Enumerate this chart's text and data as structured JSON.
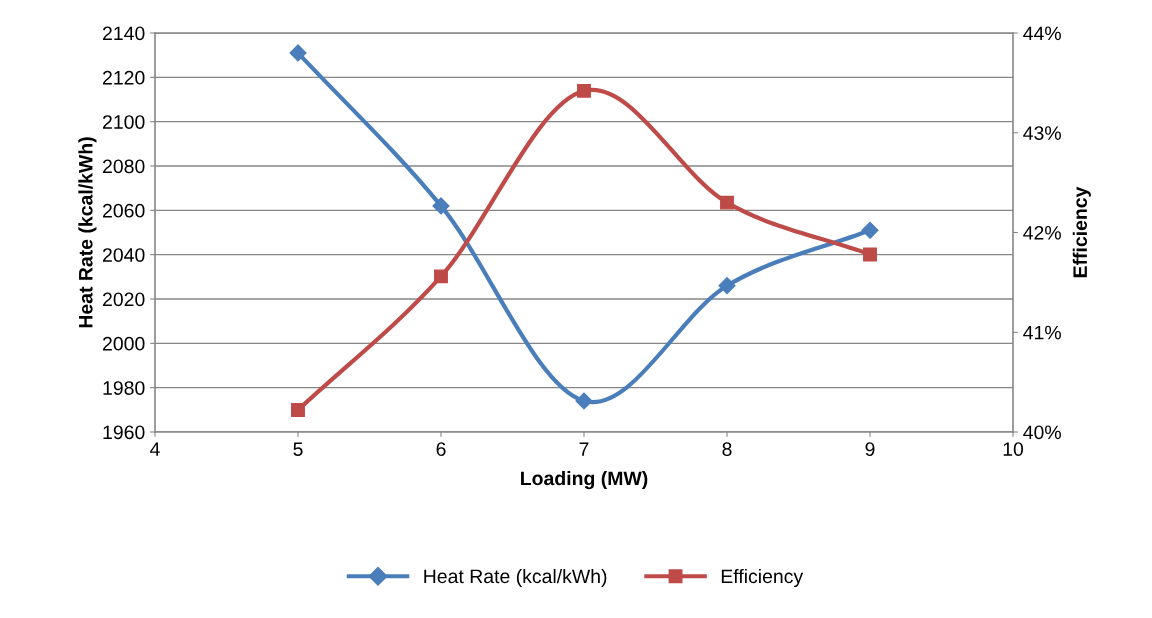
{
  "chart_data": {
    "type": "line",
    "xlabel": "Loading (MW)",
    "ylabel": "Heat Rate (kcal/kWh)",
    "y2label": "Efficiency",
    "x": [
      5,
      6,
      7,
      8,
      9
    ],
    "series": [
      {
        "name": "Heat Rate (kcal/kWh)",
        "color": "#4a7ebb",
        "values": [
          2131,
          2062,
          1974,
          2026,
          2051
        ],
        "marker": "diamond"
      },
      {
        "name": "Efficiency",
        "color": "#be4b48",
        "values": [
          40.22,
          41.56,
          43.42,
          42.3,
          41.78
        ],
        "marker": "square",
        "axis": "y2"
      }
    ],
    "xlim": [
      4,
      10
    ],
    "xticks": [
      4,
      5,
      6,
      7,
      8,
      9,
      10
    ],
    "ylim": [
      1960,
      2140
    ],
    "yticks": [
      1960,
      1980,
      2000,
      2020,
      2040,
      2060,
      2080,
      2100,
      2120,
      2140
    ],
    "y2lim": [
      40,
      44
    ],
    "y2ticks": [
      {
        "value": 40,
        "label": "40%"
      },
      {
        "value": 41,
        "label": "41%"
      },
      {
        "value": 42,
        "label": "42%"
      },
      {
        "value": 43,
        "label": "43%"
      },
      {
        "value": 44,
        "label": "44%"
      }
    ],
    "grid": "y",
    "legend": "bottom",
    "line_style": "solid"
  }
}
